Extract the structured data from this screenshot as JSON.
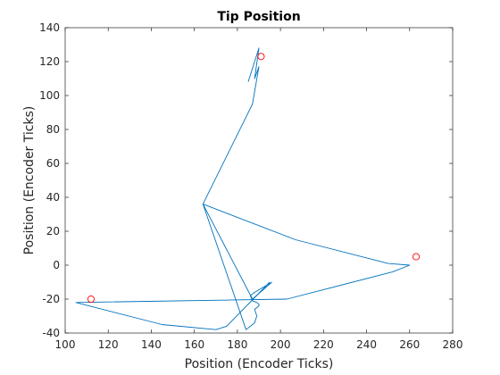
{
  "chart_data": {
    "type": "line",
    "title": "Tip Position",
    "xlabel": "Position (Encoder Ticks)",
    "ylabel": "Position (Encoder Ticks)",
    "xlim": [
      100,
      280
    ],
    "ylim": [
      -40,
      140
    ],
    "xticks": [
      100,
      120,
      140,
      160,
      180,
      200,
      220,
      240,
      260,
      280
    ],
    "yticks": [
      -40,
      -20,
      0,
      20,
      40,
      60,
      80,
      100,
      120,
      140
    ],
    "grid": false,
    "series": [
      {
        "kind": "path",
        "color": "#0072BD",
        "x": [
          196,
          188,
          186,
          187,
          189,
          190,
          190,
          188,
          189,
          188,
          184,
          164,
          207,
          250,
          260,
          252,
          203,
          105,
          145,
          170,
          175,
          195
        ],
        "y": [
          -10,
          -16,
          -18,
          -21,
          -22,
          -23,
          -24,
          -26,
          -30,
          -34,
          -38,
          36,
          15,
          1,
          0,
          -4,
          -20,
          -22,
          -35,
          -38,
          -36,
          -10
        ]
      },
      {
        "kind": "trace",
        "color": "#0072BD",
        "x": [
          196,
          187,
          164,
          187,
          190,
          188,
          190,
          185
        ],
        "y": [
          -10,
          -20,
          36,
          95,
          117,
          110,
          128,
          108
        ]
      },
      {
        "kind": "markers",
        "marker": "circle",
        "color": "#FF0000",
        "x": [
          112,
          191,
          263
        ],
        "y": [
          -20,
          123,
          5
        ]
      }
    ]
  }
}
